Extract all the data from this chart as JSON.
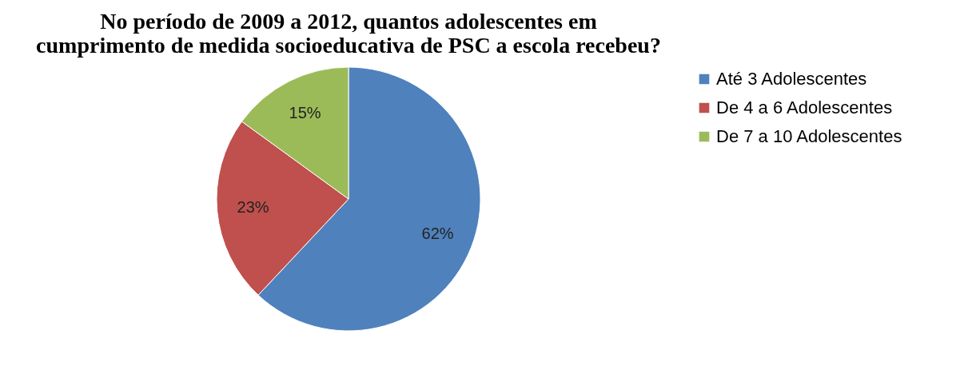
{
  "chart_data": {
    "type": "pie",
    "title": "No período de 2009 a 2012, quantos adolescentes em cumprimento de medida socioeducativa de PSC a escola recebeu?",
    "categories": [
      "Até 3 Adolescentes",
      "De 4 a 6 Adolescentes",
      "De 7 a 10 Adolescentes"
    ],
    "values": [
      62,
      23,
      15
    ],
    "value_labels": [
      "62%",
      "23%",
      "15%"
    ],
    "colors": [
      "#4f81bd",
      "#c0504d",
      "#9bbb59"
    ],
    "legend": "right"
  }
}
